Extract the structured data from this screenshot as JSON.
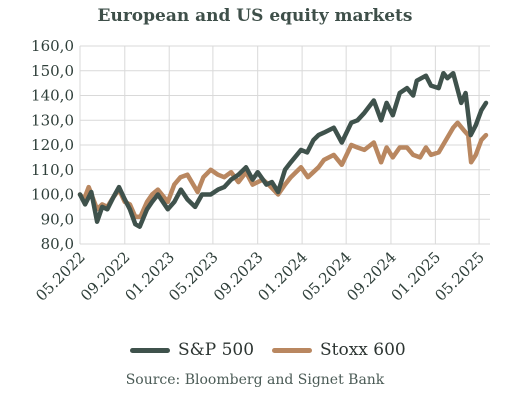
{
  "title": "European and US equity markets",
  "source": "Source: Bloomberg and Signet Bank",
  "colors": {
    "sp500": "#3f524c",
    "stoxx": "#b98760",
    "grid": "#d9d9d9",
    "text": "#2f3f3a"
  },
  "chart_data": {
    "type": "line",
    "title": "European and US equity markets",
    "xlabel": "",
    "ylabel": "",
    "ylim": [
      80,
      160
    ],
    "xlim": [
      "2022-05-01",
      "2025-05-31"
    ],
    "yticks": [
      "80,0",
      "90,0",
      "100,0",
      "110,0",
      "120,0",
      "130,0",
      "140,0",
      "150,0",
      "160,0"
    ],
    "xticks": [
      "05.2022",
      "09.2022",
      "01.2023",
      "05.2023",
      "09.2023",
      "01.2024",
      "05.2024",
      "09.2024",
      "01.2025",
      "05.2025"
    ],
    "grid": true,
    "legend_position": "bottom",
    "series": [
      {
        "name": "S&P 500",
        "color": "#3f524c",
        "points": [
          [
            "2022-05-01",
            100
          ],
          [
            "2022-05-15",
            96
          ],
          [
            "2022-06-01",
            101
          ],
          [
            "2022-06-17",
            89
          ],
          [
            "2022-07-01",
            95
          ],
          [
            "2022-07-15",
            94
          ],
          [
            "2022-08-01",
            99
          ],
          [
            "2022-08-16",
            103
          ],
          [
            "2022-09-01",
            98
          ],
          [
            "2022-09-15",
            94
          ],
          [
            "2022-09-30",
            88
          ],
          [
            "2022-10-12",
            87
          ],
          [
            "2022-11-01",
            94
          ],
          [
            "2022-11-15",
            97
          ],
          [
            "2022-12-01",
            100
          ],
          [
            "2022-12-28",
            94
          ],
          [
            "2023-01-15",
            97
          ],
          [
            "2023-02-02",
            102
          ],
          [
            "2023-02-20",
            98
          ],
          [
            "2023-03-13",
            95
          ],
          [
            "2023-04-01",
            100
          ],
          [
            "2023-04-25",
            100
          ],
          [
            "2023-05-15",
            102
          ],
          [
            "2023-06-01",
            103
          ],
          [
            "2023-06-20",
            106
          ],
          [
            "2023-07-10",
            108
          ],
          [
            "2023-07-31",
            111
          ],
          [
            "2023-08-18",
            106
          ],
          [
            "2023-09-01",
            109
          ],
          [
            "2023-09-25",
            104
          ],
          [
            "2023-10-10",
            105
          ],
          [
            "2023-10-27",
            101
          ],
          [
            "2023-11-15",
            110
          ],
          [
            "2023-12-01",
            113
          ],
          [
            "2023-12-29",
            118
          ],
          [
            "2024-01-15",
            117
          ],
          [
            "2024-02-01",
            122
          ],
          [
            "2024-02-15",
            124
          ],
          [
            "2024-03-01",
            125
          ],
          [
            "2024-03-28",
            127
          ],
          [
            "2024-04-19",
            121
          ],
          [
            "2024-05-15",
            129
          ],
          [
            "2024-06-01",
            130
          ],
          [
            "2024-06-20",
            133
          ],
          [
            "2024-07-16",
            138
          ],
          [
            "2024-08-05",
            130
          ],
          [
            "2024-08-20",
            137
          ],
          [
            "2024-09-06",
            132
          ],
          [
            "2024-09-25",
            141
          ],
          [
            "2024-10-15",
            143
          ],
          [
            "2024-11-01",
            140
          ],
          [
            "2024-11-11",
            146
          ],
          [
            "2024-12-06",
            148
          ],
          [
            "2024-12-20",
            144
          ],
          [
            "2025-01-10",
            143
          ],
          [
            "2025-01-23",
            149
          ],
          [
            "2025-02-03",
            147
          ],
          [
            "2025-02-19",
            149
          ],
          [
            "2025-03-13",
            137
          ],
          [
            "2025-03-25",
            141
          ],
          [
            "2025-04-08",
            124
          ],
          [
            "2025-04-22",
            128
          ],
          [
            "2025-05-07",
            134
          ],
          [
            "2025-05-20",
            137
          ]
        ]
      },
      {
        "name": "Stoxx 600",
        "color": "#b98760",
        "points": [
          [
            "2022-05-01",
            100
          ],
          [
            "2022-05-12",
            98
          ],
          [
            "2022-05-25",
            103
          ],
          [
            "2022-06-17",
            94
          ],
          [
            "2022-07-01",
            96
          ],
          [
            "2022-07-15",
            95
          ],
          [
            "2022-08-01",
            99
          ],
          [
            "2022-08-16",
            102
          ],
          [
            "2022-09-01",
            97
          ],
          [
            "2022-09-15",
            96
          ],
          [
            "2022-09-30",
            91
          ],
          [
            "2022-10-14",
            91
          ],
          [
            "2022-11-01",
            97
          ],
          [
            "2022-11-15",
            100
          ],
          [
            "2022-12-01",
            102
          ],
          [
            "2022-12-28",
            97
          ],
          [
            "2023-01-15",
            104
          ],
          [
            "2023-02-01",
            107
          ],
          [
            "2023-02-20",
            108
          ],
          [
            "2023-03-20",
            101
          ],
          [
            "2023-04-05",
            107
          ],
          [
            "2023-04-25",
            110
          ],
          [
            "2023-05-15",
            108
          ],
          [
            "2023-06-01",
            107
          ],
          [
            "2023-06-20",
            109
          ],
          [
            "2023-07-10",
            105
          ],
          [
            "2023-07-31",
            109
          ],
          [
            "2023-08-18",
            104
          ],
          [
            "2023-09-15",
            106
          ],
          [
            "2023-10-01",
            104
          ],
          [
            "2023-10-27",
            100
          ],
          [
            "2023-11-15",
            104
          ],
          [
            "2023-12-01",
            107
          ],
          [
            "2023-12-29",
            111
          ],
          [
            "2024-01-17",
            107
          ],
          [
            "2024-02-15",
            111
          ],
          [
            "2024-03-01",
            114
          ],
          [
            "2024-03-28",
            116
          ],
          [
            "2024-04-19",
            112
          ],
          [
            "2024-05-15",
            120
          ],
          [
            "2024-06-01",
            119
          ],
          [
            "2024-06-20",
            118
          ],
          [
            "2024-07-16",
            121
          ],
          [
            "2024-08-05",
            113
          ],
          [
            "2024-08-20",
            119
          ],
          [
            "2024-09-06",
            115
          ],
          [
            "2024-09-25",
            119
          ],
          [
            "2024-10-15",
            119
          ],
          [
            "2024-11-01",
            116
          ],
          [
            "2024-11-20",
            115
          ],
          [
            "2024-12-06",
            119
          ],
          [
            "2024-12-20",
            116
          ],
          [
            "2025-01-10",
            117
          ],
          [
            "2025-01-30",
            122
          ],
          [
            "2025-02-19",
            127
          ],
          [
            "2025-03-03",
            129
          ],
          [
            "2025-03-20",
            126
          ],
          [
            "2025-04-01",
            124
          ],
          [
            "2025-04-09",
            113
          ],
          [
            "2025-04-22",
            116
          ],
          [
            "2025-05-07",
            122
          ],
          [
            "2025-05-20",
            124
          ]
        ]
      }
    ]
  }
}
